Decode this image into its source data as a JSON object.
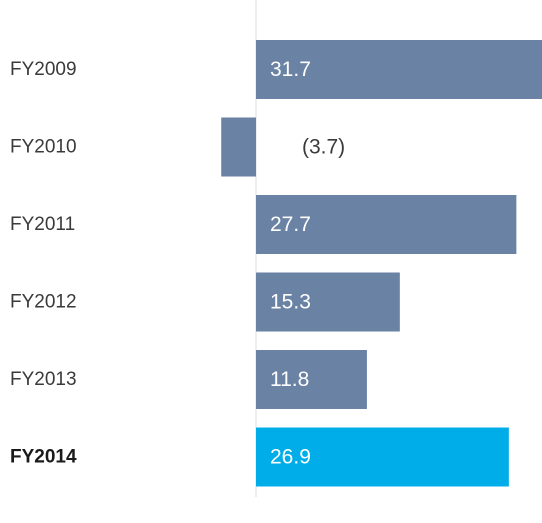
{
  "chart_data": {
    "type": "bar",
    "orientation": "horizontal",
    "categories": [
      "FY2009",
      "FY2010",
      "FY2011",
      "FY2012",
      "FY2013",
      "FY2014"
    ],
    "values": [
      31.7,
      -3.7,
      27.7,
      15.3,
      11.8,
      26.9
    ],
    "value_labels": [
      "31.7",
      "(3.7)",
      "27.7",
      "15.3",
      "11.8",
      "26.9"
    ],
    "highlight_index": 5,
    "colors": {
      "bar": "#6a82a4",
      "highlight_bar": "#00ade8",
      "label_on_bar": "#ffffff",
      "label_off_bar": "#3a3a3a",
      "baseline": "#eeeeee"
    },
    "xlim": [
      -4.5,
      32.5
    ],
    "title": "",
    "xlabel": "",
    "ylabel": "",
    "grid": false,
    "legend": "none"
  }
}
